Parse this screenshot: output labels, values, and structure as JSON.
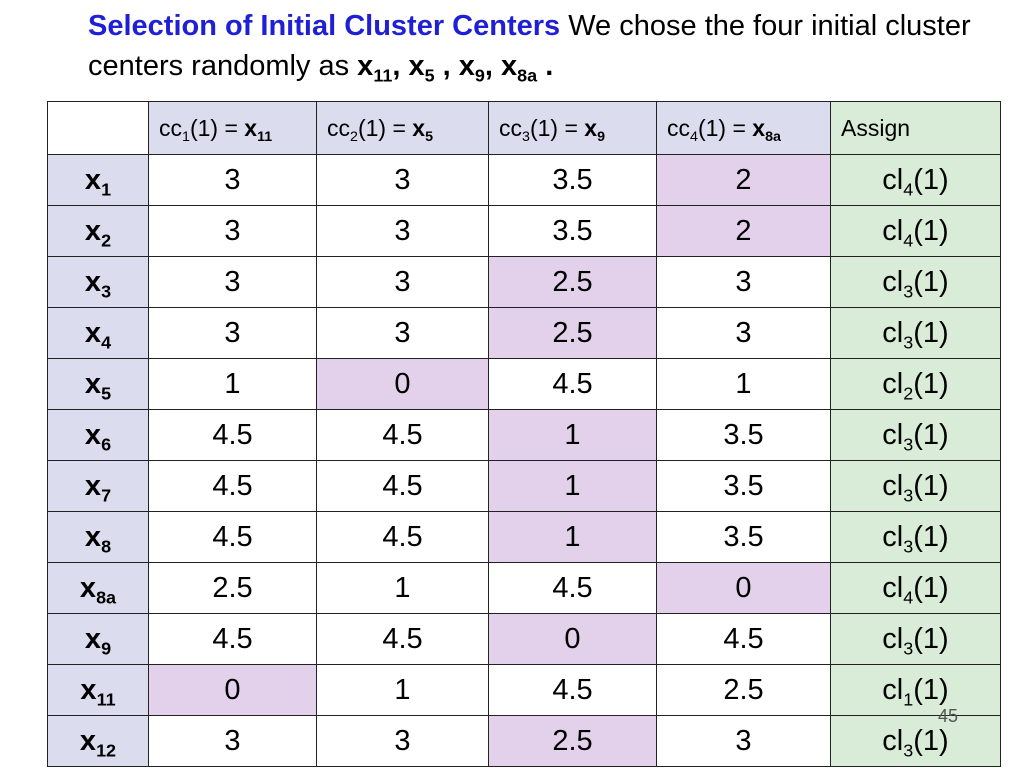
{
  "title": {
    "head": "Selection of Initial Cluster Centers",
    "text1": " We chose the four initial cluster centers  randomly as ",
    "c1": "x",
    "c1s": "11",
    "c2": "x",
    "c2s": "5",
    "c3": "x",
    "c3s": "9",
    "c4": "x",
    "c4s": "8a"
  },
  "columns": [
    {
      "pre": "cc",
      "sub": "1",
      "mid": "(1) = ",
      "x": "x",
      "xsub": "11"
    },
    {
      "pre": "cc",
      "sub": "2",
      "mid": "(1) = ",
      "x": "x",
      "xsub": "5"
    },
    {
      "pre": "cc",
      "sub": "3",
      "mid": "(1) = ",
      "x": "x",
      "xsub": "9"
    },
    {
      "pre": "cc",
      "sub": "4",
      "mid": "(1) = ",
      "x": "x",
      "xsub": "8a"
    }
  ],
  "assign_header": "Assign",
  "rows": [
    {
      "x": "x",
      "sub": "1",
      "vals": [
        "3",
        "3",
        "3.5",
        "2"
      ],
      "hl": 3,
      "cl": "cl",
      "clsub": "4",
      "cltail": "(1)"
    },
    {
      "x": "x",
      "sub": "2",
      "vals": [
        "3",
        "3",
        "3.5",
        "2"
      ],
      "hl": 3,
      "cl": "cl",
      "clsub": "4",
      "cltail": "(1)"
    },
    {
      "x": "x",
      "sub": "3",
      "vals": [
        "3",
        "3",
        "2.5",
        "3"
      ],
      "hl": 2,
      "cl": "cl",
      "clsub": "3",
      "cltail": "(1)"
    },
    {
      "x": "x",
      "sub": "4",
      "vals": [
        "3",
        "3",
        "2.5",
        "3"
      ],
      "hl": 2,
      "cl": "cl",
      "clsub": "3",
      "cltail": "(1)"
    },
    {
      "x": "x",
      "sub": "5",
      "vals": [
        "1",
        "0",
        "4.5",
        "1"
      ],
      "hl": 1,
      "cl": "cl",
      "clsub": "2",
      "cltail": "(1)"
    },
    {
      "x": "x",
      "sub": "6",
      "vals": [
        "4.5",
        "4.5",
        "1",
        "3.5"
      ],
      "hl": 2,
      "cl": "cl",
      "clsub": "3",
      "cltail": "(1)"
    },
    {
      "x": "x",
      "sub": "7",
      "vals": [
        "4.5",
        "4.5",
        "1",
        "3.5"
      ],
      "hl": 2,
      "cl": "cl",
      "clsub": "3",
      "cltail": "(1)"
    },
    {
      "x": "x",
      "sub": "8",
      "vals": [
        "4.5",
        "4.5",
        "1",
        "3.5"
      ],
      "hl": 2,
      "cl": "cl",
      "clsub": "3",
      "cltail": "(1)"
    },
    {
      "x": "x",
      "sub": "8a",
      "vals": [
        "2.5",
        "1",
        "4.5",
        "0"
      ],
      "hl": 3,
      "cl": "cl",
      "clsub": "4",
      "cltail": "(1)"
    },
    {
      "x": "x",
      "sub": "9",
      "vals": [
        "4.5",
        "4.5",
        "0",
        "4.5"
      ],
      "hl": 2,
      "cl": "cl",
      "clsub": "3",
      "cltail": "(1)"
    },
    {
      "x": "x",
      "sub": "11",
      "vals": [
        "0",
        "1",
        "4.5",
        "2.5"
      ],
      "hl": 0,
      "cl": "cl",
      "clsub": "1",
      "cltail": "(1)"
    },
    {
      "x": "x",
      "sub": "12",
      "vals": [
        "3",
        "3",
        "2.5",
        "3"
      ],
      "hl": 2,
      "cl": "cl",
      "clsub": "3",
      "cltail": "(1)"
    }
  ],
  "page_number": "45",
  "colors": {
    "title": "#1f1fd6",
    "header_bg": "#dcdcef",
    "highlight": "#e3d1ec",
    "assign_bg": "#d9ecd7"
  }
}
